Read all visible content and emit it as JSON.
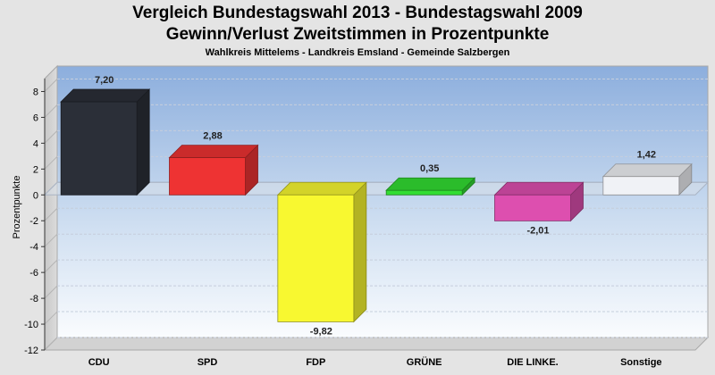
{
  "chart_data": {
    "type": "bar",
    "title_line1": "Vergleich Bundestagswahl 2013 - Bundestagswahl 2009",
    "title_line2": "Gewinn/Verlust Zweitstimmen in Prozentpunkte",
    "subtitle": "Wahlkreis Mittelems - Landkreis Emsland - Gemeinde Salzbergen",
    "ylabel": "Prozentpunkte",
    "xlabel": "",
    "ylim": [
      -12,
      9
    ],
    "yticks": [
      8,
      6,
      4,
      2,
      0,
      -2,
      -4,
      -6,
      -8,
      -10,
      -12
    ],
    "grid": true,
    "categories": [
      "CDU",
      "SPD",
      "FDP",
      "GRÜNE",
      "DIE LINKE.",
      "Sonstige"
    ],
    "values": [
      7.2,
      2.88,
      -9.82,
      0.35,
      -2.01,
      1.42
    ],
    "value_labels": [
      "7,20",
      "2,88",
      "-9,82",
      "0,35",
      "-2,01",
      "1,42"
    ],
    "colors": [
      "#2b2f38",
      "#ee3333",
      "#f8f830",
      "#33dd33",
      "#dd4faf",
      "#f0f2f6"
    ]
  }
}
